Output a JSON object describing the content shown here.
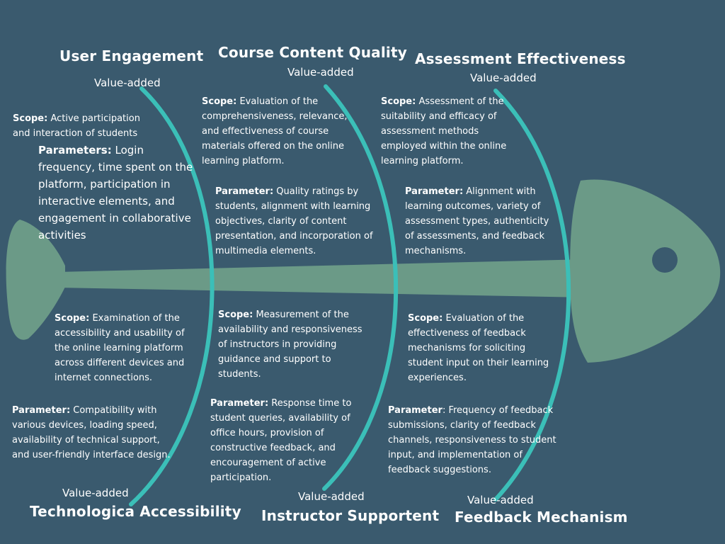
{
  "colors": {
    "background": "#3a5a6e",
    "fish": "#6b9a87",
    "bone": "#3bbfb8",
    "eye": "#3a5a6e"
  },
  "categories": [
    {
      "title": "User Engagement",
      "value_label": "Value-added"
    },
    {
      "title": "Course Content Quality",
      "value_label": "Value-added"
    },
    {
      "title": "Assessment Effectiveness",
      "value_label": "Value-added"
    },
    {
      "title": "Technologica Accessibility",
      "value_label": "Value-added"
    },
    {
      "title": "Instructor Supportent",
      "value_label": "Value-added"
    },
    {
      "title": "Feedback Mechanism",
      "value_label": "Value-added"
    }
  ],
  "blocks": [
    {
      "label": "Scope:",
      "text": " Active participation and interaction of students"
    },
    {
      "label": "Parameters:",
      "text": " Login frequency, time spent on the platform, participation in interactive elements, and engagement in collaborative activities"
    },
    {
      "label": "Scope:",
      "text": " Evaluation of the comprehensiveness, relevance, and effectiveness of course materials offered on the online learning platform."
    },
    {
      "label": "Parameter:",
      "text": " Quality ratings by students, alignment with learning objectives, clarity of content presentation, and incorporation of multimedia elements."
    },
    {
      "label": "Scope:",
      "text": " Assessment of the suitability and efficacy of assessment methods employed within the online learning platform."
    },
    {
      "label": "Parameter:",
      "text": " Alignment with learning outcomes, variety of assessment types, authenticity of assessments, and feedback mechanisms."
    },
    {
      "label": "Scope:",
      "text": " Examination of the accessibility and usability of the online learning platform across different devices and internet connections."
    },
    {
      "label": "Parameter:",
      "text": " Compatibility with various devices, loading speed, availability of technical support, and user-friendly interface design."
    },
    {
      "label": "Scope:",
      "text": " Measurement of the availability and responsiveness of instructors in providing guidance and support to students."
    },
    {
      "label": "Parameter:",
      "text": " Response time to student queries, availability of office hours, provision of constructive feedback, and encouragement of active participation."
    },
    {
      "label": "Scope:",
      "text": " Evaluation of the effectiveness of feedback mechanisms for soliciting student input on their learning experiences."
    },
    {
      "label": "Parameter",
      "text": ": Frequency of feedback submissions, clarity of feedback channels, responsiveness to student input, and implementation of feedback suggestions."
    }
  ]
}
